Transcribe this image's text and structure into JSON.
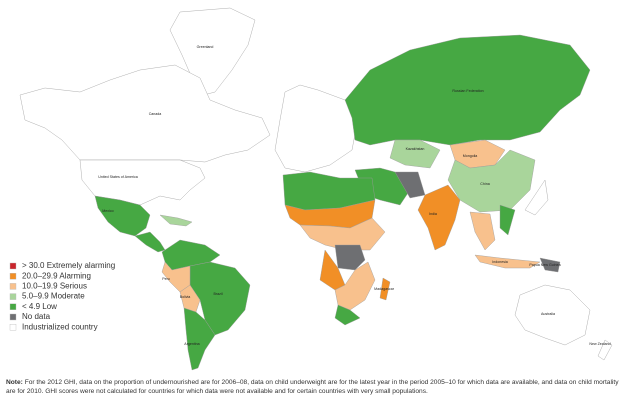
{
  "legend": {
    "items": [
      {
        "label": "> 30.0 Extremely alarming",
        "color": "#c9252c"
      },
      {
        "label": "20.0–29.9 Alarming",
        "color": "#f18f26"
      },
      {
        "label": "10.0–19.9 Serious",
        "color": "#f8c18d"
      },
      {
        "label": "5.0–9.9 Moderate",
        "color": "#a9d59b"
      },
      {
        "label": "< 4.9 Low",
        "color": "#46a843"
      },
      {
        "label": "No data",
        "color": "#6e6f72"
      },
      {
        "label": "Industrialized country",
        "color": "#ffffff"
      }
    ]
  },
  "map_labels": [
    "Greenland",
    "Canada",
    "United States of America",
    "Mexico",
    "Brazil",
    "Argentina",
    "Russian Federation",
    "Mongolia",
    "China",
    "India",
    "Australia",
    "Madagascar",
    "Kazakhstan",
    "Indonesia",
    "Papua New Guinea",
    "New Zealand",
    "Peru",
    "Bolivia"
  ],
  "note": {
    "label": "Note:",
    "text": " For the 2012 GHI, data on the proportion of undernourished are for 2006–08, data on child underweight are for the latest year in the period 2005–10 for which data are available, and data on child mortality are for 2010. GHI scores were not calculated for countries for which data were not available and for certain countries with very small populations."
  }
}
